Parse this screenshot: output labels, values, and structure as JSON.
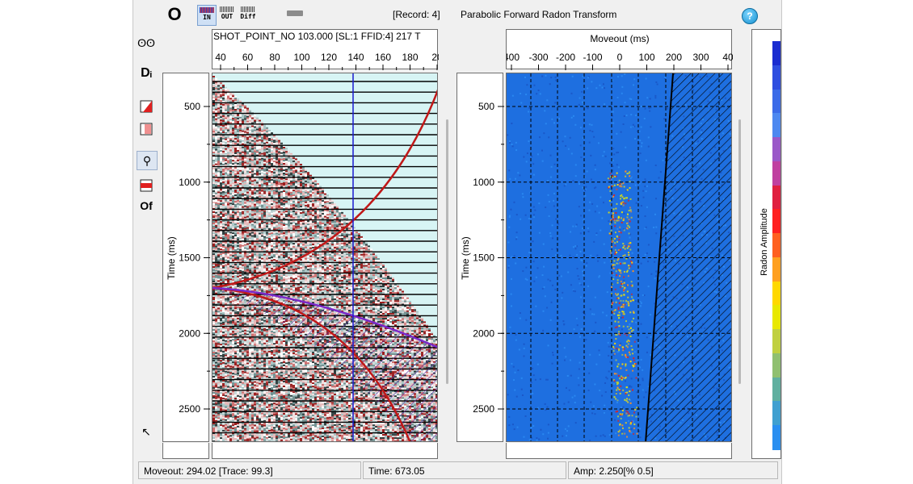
{
  "toolbar": {
    "o_label": "O",
    "view_buttons": [
      {
        "label": "IN",
        "active": true
      },
      {
        "label": "OUT",
        "active": false
      },
      {
        "label": "Diff",
        "active": false
      }
    ]
  },
  "header": {
    "record": "[Record: 4]",
    "title": "Parabolic  Forward Radon Transform",
    "help": "?"
  },
  "side_tools": [
    {
      "name": "glasses-icon",
      "glyph": "ʘʘ"
    },
    {
      "name": "di-icon",
      "glyph": "Dᵢ"
    },
    {
      "name": "red-triangle-icon",
      "glyph": "◩"
    },
    {
      "name": "hatch-icon",
      "glyph": "▨"
    },
    {
      "name": "pick-icon",
      "glyph": "⚲"
    },
    {
      "name": "red-band-icon",
      "glyph": "▬"
    },
    {
      "name": "of-icon",
      "glyph": "Of"
    },
    {
      "name": "pointer-icon",
      "glyph": "↖"
    }
  ],
  "left_panel": {
    "header_text": "SHOT_POINT_NO 103.000 [SL:1 FFID:4] 217 T",
    "x_ticks": [
      "40",
      "60",
      "80",
      "100",
      "120",
      "140",
      "160",
      "180",
      "20"
    ],
    "y_label": "Time (ms)",
    "y_ticks": [
      "500",
      "1000",
      "1500",
      "2000",
      "2500"
    ]
  },
  "right_panel": {
    "x_title": "Moveout (ms)",
    "x_ticks": [
      "400",
      "-300",
      "-200",
      "-100",
      "0",
      "100",
      "200",
      "300",
      "40"
    ],
    "y_label": "Time (ms)",
    "y_ticks": [
      "500",
      "1000",
      "1500",
      "2000",
      "2500"
    ]
  },
  "colorbar": {
    "label": "Radon Amplitude",
    "colors": [
      "#1a2cd0",
      "#2e4ee0",
      "#3b6be8",
      "#4d88f0",
      "#9a58c8",
      "#c040a0",
      "#e02040",
      "#ff2020",
      "#ff6020",
      "#ffa020",
      "#ffd800",
      "#e8e800",
      "#c0d040",
      "#90c070",
      "#60b0a0",
      "#40a0d0",
      "#2a8ff0"
    ]
  },
  "status": {
    "moveout": "Moveout: 294.02 [Trace: 99.3]",
    "time": "Time: 673.05",
    "amp": "Amp: 2.250[% 0.5]"
  }
}
